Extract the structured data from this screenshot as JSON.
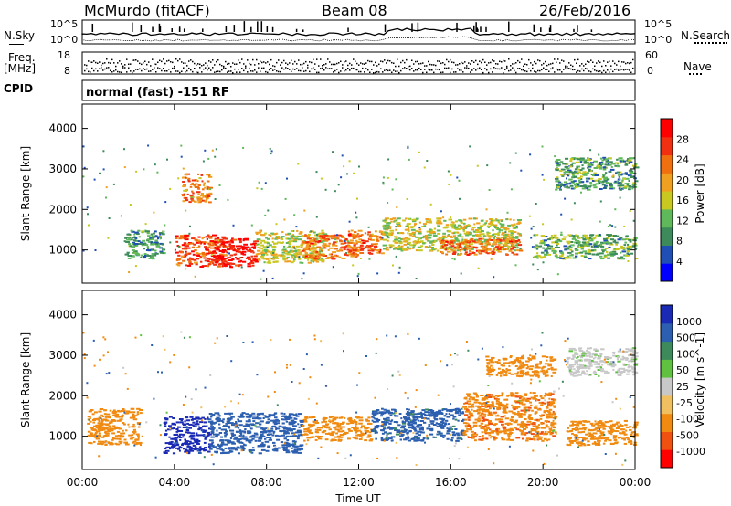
{
  "header": {
    "station": "McMurdo (fitACF)",
    "beam": "Beam 08",
    "date": "26/Feb/2016"
  },
  "left_labels": {
    "nsky": "N.Sky",
    "freq": "Freq.",
    "freq_unit": "[MHz]",
    "cpid": "CPID"
  },
  "right_labels": {
    "nsearch": "N.Search",
    "nave": "Nave"
  },
  "noise_axis": {
    "top": "10^5",
    "bottom": "10^0"
  },
  "freq_axis": {
    "top": "18",
    "bottom": "8"
  },
  "nave_axis": {
    "top": "60",
    "bottom": "0"
  },
  "cpid_text": "normal (fast) -151 RF",
  "colors": {
    "power_scale": [
      "#0000ff",
      "#1f4fb5",
      "#3d8a5a",
      "#5fb85a",
      "#c8c820",
      "#f0a020",
      "#f07010",
      "#f03010",
      "#ff0000"
    ],
    "velocity_scale": [
      "#ff0000",
      "#f05010",
      "#f08a10",
      "#f0c060",
      "#c8c8c8",
      "#60c040",
      "#3d8a5a",
      "#2c5fb0",
      "#1a2ab5"
    ],
    "ground_scatter": "#b0b0b0"
  },
  "chart_data": [
    {
      "type": "heatmap",
      "name": "power-panel",
      "xlabel": "",
      "ylabel": "Slant Range [km]",
      "xlim": [
        0,
        24
      ],
      "ylim": [
        180,
        4600
      ],
      "yticks": [
        "1000",
        "2000",
        "3000",
        "4000"
      ],
      "colorbar": {
        "label": "Power [dB]",
        "ticks": [
          "4",
          "8",
          "12",
          "16",
          "20",
          "24",
          "28"
        ],
        "range": [
          0,
          30
        ]
      },
      "regions": [
        {
          "x": [
            1.8,
            3.5
          ],
          "y": [
            800,
            1500
          ],
          "level": 9
        },
        {
          "x": [
            4.0,
            6.2
          ],
          "y": [
            600,
            1400
          ],
          "level": 24
        },
        {
          "x": [
            5.5,
            7.5
          ],
          "y": [
            600,
            1300
          ],
          "level": 28
        },
        {
          "x": [
            7.5,
            10.5
          ],
          "y": [
            700,
            1500
          ],
          "level": 15
        },
        {
          "x": [
            9.5,
            12.0
          ],
          "y": [
            800,
            1400
          ],
          "level": 22
        },
        {
          "x": [
            11.5,
            13.0
          ],
          "y": [
            900,
            1500
          ],
          "level": 22
        },
        {
          "x": [
            13.0,
            19.0
          ],
          "y": [
            1000,
            1800
          ],
          "level": 15
        },
        {
          "x": [
            15.5,
            19.0
          ],
          "y": [
            900,
            1300
          ],
          "level": 22
        },
        {
          "x": [
            19.5,
            24.0
          ],
          "y": [
            800,
            1400
          ],
          "level": 11
        },
        {
          "x": [
            4.3,
            5.5
          ],
          "y": [
            2200,
            2900
          ],
          "level": 21
        },
        {
          "x": [
            20.5,
            24.0
          ],
          "y": [
            2500,
            3300
          ],
          "level": 10
        }
      ]
    },
    {
      "type": "heatmap",
      "name": "velocity-panel",
      "xlabel": "Time UT",
      "ylabel": "Slant Range [km]",
      "xlim": [
        0,
        24
      ],
      "ylim": [
        180,
        4600
      ],
      "xticks": [
        "00:00",
        "04:00",
        "08:00",
        "12:00",
        "16:00",
        "20:00",
        "00:00"
      ],
      "yticks": [
        "1000",
        "2000",
        "3000",
        "4000"
      ],
      "colorbar": {
        "label": "Velocity [m s^-1]",
        "ticks": [
          "1000",
          "500",
          "100",
          "50",
          "25",
          "-25",
          "-100",
          "-500",
          "-1000"
        ],
        "range": [
          -1000,
          1000
        ]
      },
      "regions": [
        {
          "x": [
            0.2,
            2.5
          ],
          "y": [
            800,
            1700
          ],
          "v": -300
        },
        {
          "x": [
            3.5,
            5.5
          ],
          "y": [
            600,
            1500
          ],
          "v": 800
        },
        {
          "x": [
            5.5,
            9.5
          ],
          "y": [
            600,
            1600
          ],
          "v": 200
        },
        {
          "x": [
            9.5,
            12.5
          ],
          "y": [
            900,
            1500
          ],
          "v": -300
        },
        {
          "x": [
            12.5,
            16.5
          ],
          "y": [
            900,
            1700
          ],
          "v": 150
        },
        {
          "x": [
            16.5,
            20.5
          ],
          "y": [
            900,
            2100
          ],
          "v": -400
        },
        {
          "x": [
            21.0,
            24.0
          ],
          "y": [
            800,
            1400
          ],
          "v": -350
        },
        {
          "x": [
            17.5,
            20.5
          ],
          "y": [
            2500,
            3000
          ],
          "v": -200
        },
        {
          "x": [
            21.0,
            24.0
          ],
          "y": [
            2500,
            3200
          ],
          "v": 20
        }
      ]
    }
  ]
}
